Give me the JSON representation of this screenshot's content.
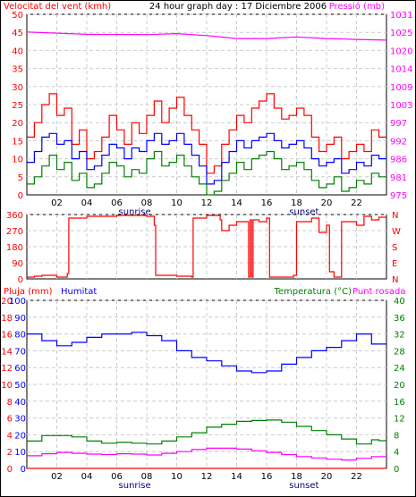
{
  "chart_data": [
    {
      "type": "line",
      "title": "24 hour graph day : 17 Diciembre 2006",
      "left_axis_label": "Velocitat del vent (kmh)",
      "right_axis_label": "Pressió (mb)",
      "left_ticks": [
        "0",
        "5",
        "10",
        "15",
        "20",
        "25",
        "30",
        "35",
        "40",
        "45",
        "50"
      ],
      "right_ticks": [
        "975",
        "981",
        "986",
        "992",
        "997",
        "1003",
        "1009",
        "1014",
        "1020",
        "1025",
        "1031"
      ],
      "ylim_left": [
        0,
        50
      ],
      "ylim_right": [
        975,
        1031
      ],
      "x_ticks": [
        "02",
        "04",
        "06",
        "08",
        "10",
        "12",
        "14",
        "16",
        "18",
        "20",
        "22"
      ],
      "annotations": [
        "sunrise",
        "sunset"
      ],
      "series": [
        {
          "color": "#ff00ff",
          "axis": "right",
          "x": [
            0,
            4,
            8,
            10,
            12,
            14,
            16,
            18,
            20,
            22,
            24
          ],
          "values": [
            1025.5,
            1024.8,
            1024.7,
            1025.0,
            1024.4,
            1023.5,
            1023.5,
            1024.0,
            1023.5,
            1023.2,
            1023.0
          ]
        },
        {
          "color": "#ff0000",
          "axis": "left",
          "x": [
            0,
            0.5,
            1,
            1.5,
            2,
            2.5,
            3,
            3.5,
            4,
            4.5,
            5,
            5.5,
            6,
            6.5,
            7,
            7.5,
            8,
            8.5,
            9,
            9.5,
            10,
            10.5,
            11,
            11.5,
            12,
            12.5,
            13,
            13.5,
            14,
            14.5,
            15,
            15.5,
            16,
            16.5,
            17,
            17.5,
            18,
            18.5,
            19,
            19.5,
            20,
            20.5,
            21,
            21.5,
            22,
            22.5,
            23,
            23.5
          ],
          "values": [
            16,
            20,
            25,
            28,
            22,
            24,
            14,
            18,
            10,
            12,
            16,
            22,
            18,
            14,
            20,
            17,
            22,
            26,
            20,
            24,
            27,
            22,
            18,
            14,
            6,
            8,
            14,
            18,
            22,
            20,
            24,
            26,
            28,
            24,
            21,
            22,
            24,
            22,
            16,
            12,
            14,
            16,
            10,
            12,
            14,
            12,
            18,
            16
          ]
        },
        {
          "color": "#0000ff",
          "axis": "left",
          "x": [
            0,
            0.5,
            1,
            1.5,
            2,
            2.5,
            3,
            3.5,
            4,
            4.5,
            5,
            5.5,
            6,
            6.5,
            7,
            7.5,
            8,
            8.5,
            9,
            9.5,
            10,
            10.5,
            11,
            11.5,
            12,
            12.5,
            13,
            13.5,
            14,
            14.5,
            15,
            15.5,
            16,
            16.5,
            17,
            17.5,
            18,
            18.5,
            19,
            19.5,
            20,
            20.5,
            21,
            21.5,
            22,
            22.5,
            23,
            23.5
          ],
          "values": [
            9,
            12,
            16,
            17,
            14,
            15,
            10,
            12,
            7,
            8,
            11,
            14,
            13,
            10,
            13,
            12,
            15,
            17,
            14,
            15,
            17,
            14,
            11,
            8,
            3,
            4,
            9,
            12,
            15,
            13,
            15,
            16,
            17,
            15,
            13,
            14,
            15,
            13,
            10,
            8,
            9,
            10,
            6,
            7,
            9,
            8,
            11,
            10
          ]
        },
        {
          "color": "#008000",
          "axis": "left",
          "x": [
            0,
            0.5,
            1,
            1.5,
            2,
            2.5,
            3,
            3.5,
            4,
            4.5,
            5,
            5.5,
            6,
            6.5,
            7,
            7.5,
            8,
            8.5,
            9,
            9.5,
            10,
            10.5,
            11,
            11.5,
            12,
            12.5,
            13,
            13.5,
            14,
            14.5,
            15,
            15.5,
            16,
            16.5,
            17,
            17.5,
            18,
            18.5,
            19,
            19.5,
            20,
            20.5,
            21,
            21.5,
            22,
            22.5,
            23,
            23.5
          ],
          "values": [
            3,
            5,
            8,
            11,
            7,
            9,
            4,
            6,
            2,
            3,
            6,
            9,
            8,
            5,
            7,
            6,
            10,
            12,
            8,
            9,
            11,
            8,
            5,
            3,
            0,
            1,
            4,
            6,
            9,
            7,
            10,
            11,
            12,
            10,
            7,
            8,
            9,
            7,
            4,
            2,
            3,
            5,
            1,
            2,
            4,
            3,
            6,
            5
          ]
        }
      ]
    },
    {
      "type": "line",
      "left_ticks": [
        "0",
        "90",
        "180",
        "270",
        "360"
      ],
      "right_ticks": [
        "N",
        "E",
        "S",
        "W",
        "N"
      ],
      "ylim": [
        0,
        360
      ],
      "series": [
        {
          "color": "#ff0000",
          "x": [
            0,
            0.5,
            1,
            2,
            2.7,
            2.8,
            4,
            6,
            8,
            8.5,
            8.6,
            10,
            11,
            11.1,
            12,
            12.9,
            13,
            13.5,
            14,
            14.8,
            14.9,
            15.0,
            15.1,
            15.5,
            16,
            16.2,
            17.8,
            18,
            19,
            19.5,
            20,
            20.2,
            20.5,
            21,
            22,
            22.5,
            23,
            23.5
          ],
          "values": [
            10,
            15,
            20,
            10,
            30,
            340,
            350,
            355,
            350,
            300,
            20,
            15,
            10,
            340,
            355,
            330,
            270,
            300,
            320,
            10,
            330,
            10,
            330,
            320,
            340,
            10,
            20,
            320,
            340,
            260,
            300,
            40,
            10,
            320,
            300,
            350,
            330,
            345
          ]
        }
      ]
    },
    {
      "type": "line",
      "left_axis_label": "Pluja (mm)",
      "left_axis_label_2": "Humitat",
      "right_axis_label": "Temperatura (°C)",
      "right_axis_label_2": "Punt rosada",
      "left_ticks_pluja": [
        "0",
        "2",
        "4",
        "6",
        "8",
        "10",
        "12",
        "14",
        "16",
        "18",
        "20"
      ],
      "left_ticks_humitat": [
        "0",
        "10",
        "20",
        "30",
        "40",
        "50",
        "60",
        "70",
        "80",
        "90",
        "100"
      ],
      "right_ticks": [
        "0",
        "4",
        "8",
        "12",
        "16",
        "20",
        "24",
        "28",
        "32",
        "36",
        "40"
      ],
      "ylim_left": [
        0,
        100
      ],
      "ylim_right": [
        0,
        40
      ],
      "series": [
        {
          "color": "#0000ff",
          "axis": "left",
          "x": [
            0,
            1,
            2,
            3,
            4,
            5,
            6,
            7,
            8,
            9,
            10,
            11,
            12,
            13,
            14,
            15,
            16,
            17,
            18,
            19,
            20,
            21,
            22,
            23,
            23.5
          ],
          "values": [
            80,
            76,
            73,
            75,
            78,
            80,
            80,
            81,
            79,
            76,
            70,
            66,
            64,
            61,
            58,
            57,
            58,
            62,
            66,
            70,
            72,
            76,
            80,
            74,
            74
          ]
        },
        {
          "color": "#008000",
          "axis": "right",
          "x": [
            0,
            1,
            2,
            3,
            4,
            5,
            6,
            7,
            8,
            9,
            10,
            11,
            12,
            13,
            14,
            15,
            16,
            17,
            18,
            19,
            20,
            21,
            22,
            23,
            23.5
          ],
          "values": [
            6.5,
            7.8,
            7.8,
            7.5,
            6.5,
            6.0,
            6.2,
            6.0,
            5.8,
            6.5,
            7.5,
            8.5,
            9.8,
            10.5,
            11.2,
            11.4,
            11.5,
            11.0,
            10.0,
            9.0,
            8.0,
            7.0,
            5.8,
            6.8,
            6.6
          ]
        },
        {
          "color": "#ff00ff",
          "axis": "right",
          "x": [
            0,
            1,
            2,
            3,
            4,
            5,
            6,
            7,
            8,
            9,
            10,
            11,
            12,
            13,
            14,
            15,
            16,
            17,
            18,
            19,
            20,
            21,
            22,
            23,
            23.5
          ],
          "values": [
            3.0,
            3.5,
            3.8,
            3.6,
            3.4,
            3.3,
            3.5,
            3.4,
            3.2,
            3.6,
            4.0,
            4.5,
            4.8,
            4.8,
            4.6,
            4.2,
            3.8,
            3.3,
            2.8,
            2.5,
            2.2,
            2.0,
            2.4,
            2.8,
            2.8
          ]
        },
        {
          "color": "#ff0000",
          "axis": "left",
          "x": [
            0,
            24
          ],
          "values": [
            0,
            0
          ]
        }
      ]
    }
  ]
}
